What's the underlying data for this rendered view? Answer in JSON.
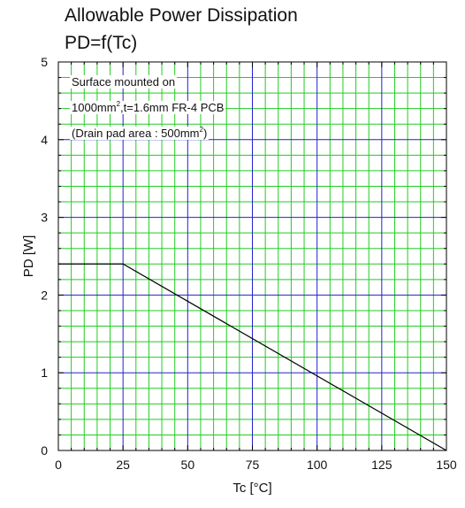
{
  "chart_data": {
    "type": "line",
    "title": "Allowable Power Dissipation",
    "subtitle": "PD=f(Tc)",
    "xlabel": "Tc [°C]",
    "ylabel": "PD [W]",
    "xlim": [
      0,
      150
    ],
    "ylim": [
      0,
      5
    ],
    "xticks": [
      "0",
      "25",
      "50",
      "75",
      "100",
      "125",
      "150"
    ],
    "yticks": [
      "0",
      "1",
      "2",
      "3",
      "4",
      "5"
    ],
    "grid": true,
    "series": [
      {
        "x": [
          0,
          25,
          150
        ],
        "y": [
          2.4,
          2.4,
          0
        ]
      }
    ],
    "annotations": {
      "line1": "Surface mounted on",
      "line2_pre": "1000mm",
      "line2_sup": "2",
      "line2_post": ",t=1.6mm FR-4 PCB",
      "line3_pre": "(Drain pad area : 500mm",
      "line3_sup": "2",
      "line3_post": ")"
    },
    "colors": {
      "minor_grid": "#22cc22",
      "major_grid": "#2222cc",
      "line": "#000000"
    }
  }
}
